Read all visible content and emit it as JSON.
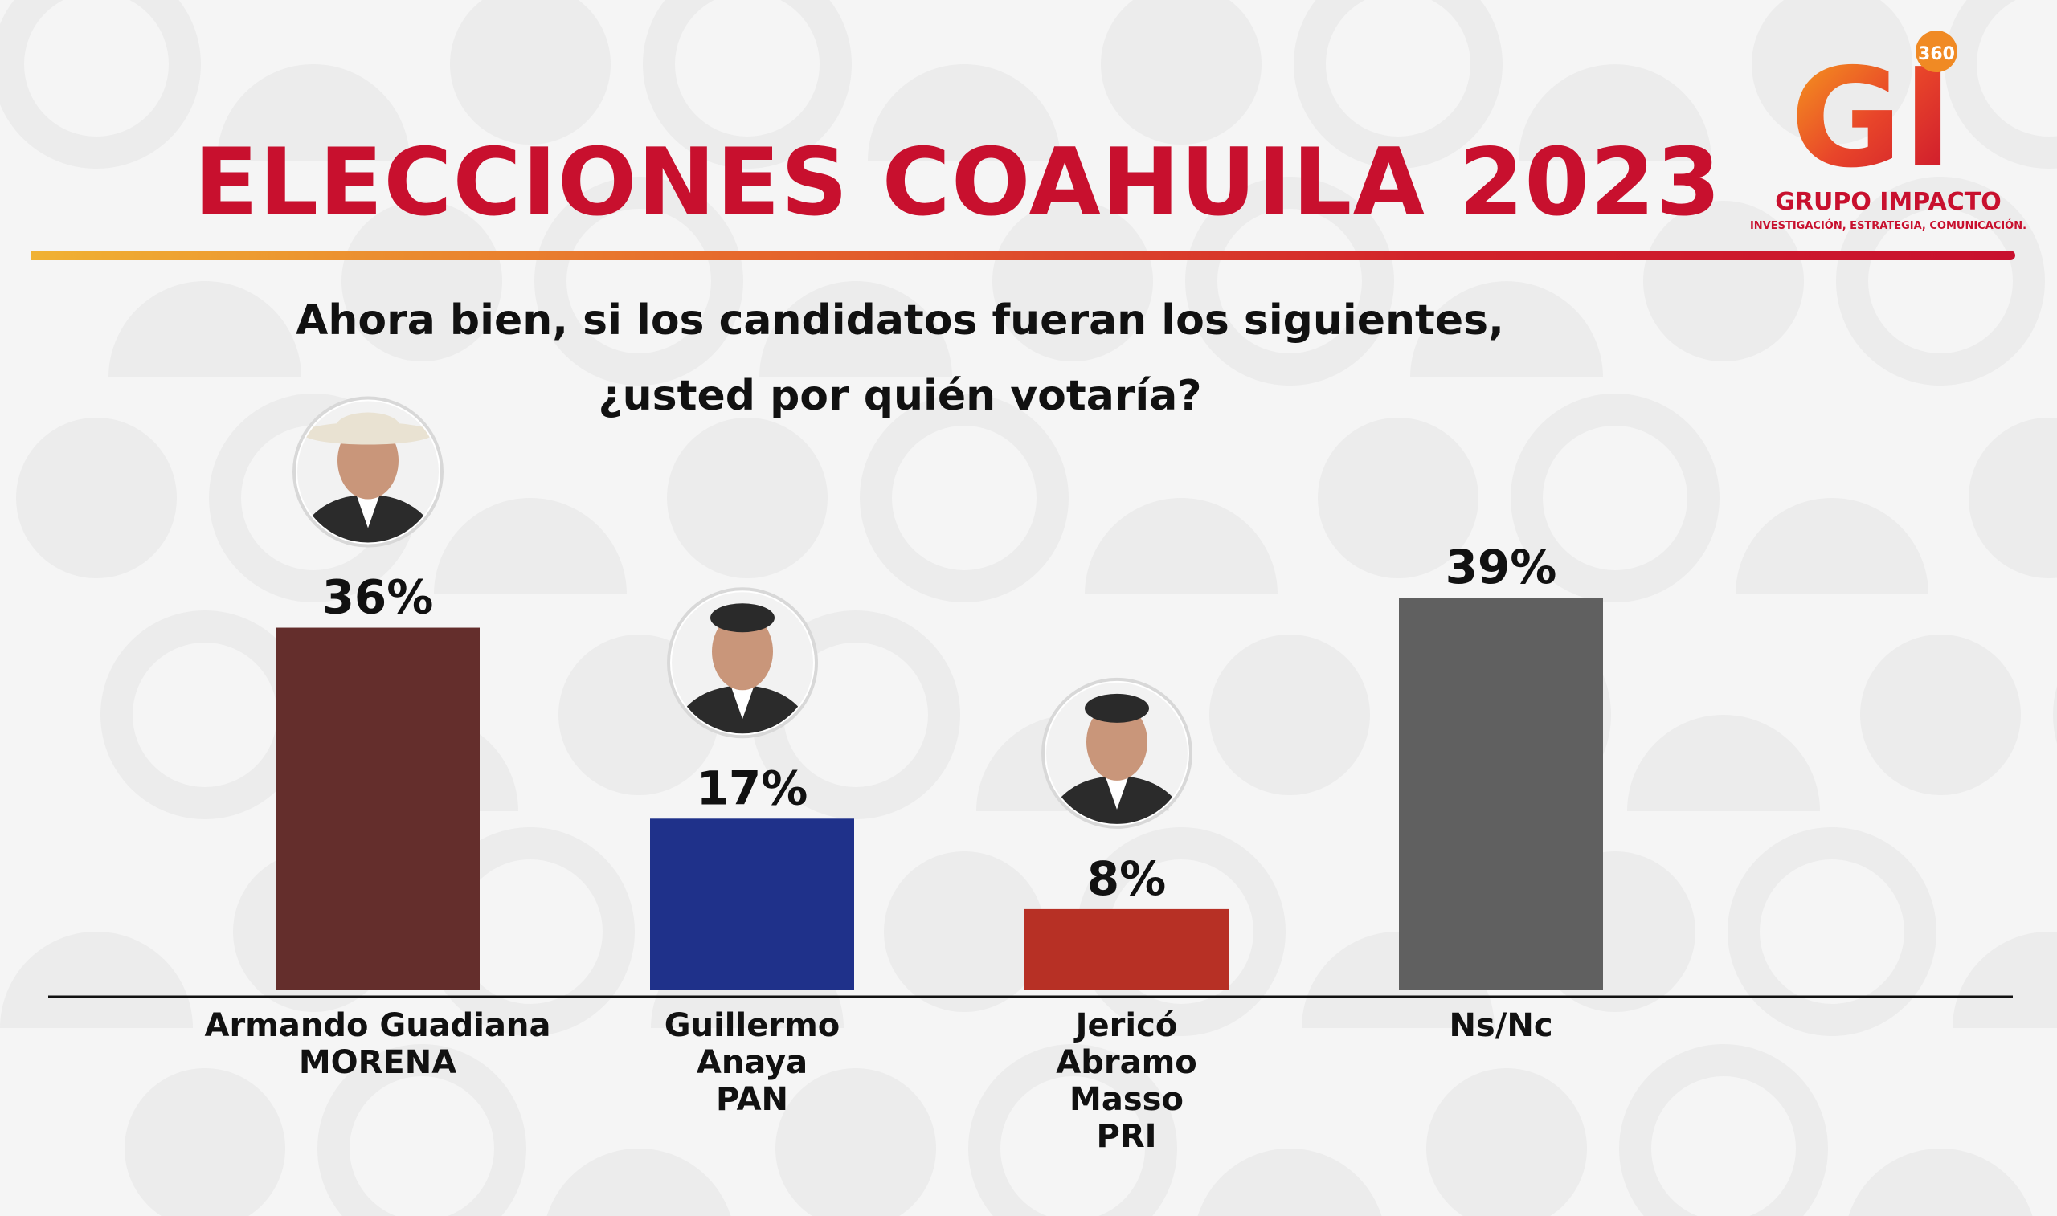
{
  "header": {
    "title": "ELECCIONES COAHUILA 2023",
    "question_line1": "Ahora bien, si los candidatos fueran los siguientes,",
    "question_line2": "¿usted por quién votaría?"
  },
  "logo": {
    "mark": "GI",
    "badge": "360",
    "name": "GRUPO IMPACTO",
    "tagline": "INVESTIGACIÓN, ESTRATEGIA, COMUNICACIÓN."
  },
  "colors": {
    "title": "#c8102e",
    "morena": "#642e2c",
    "pan": "#1f318a",
    "pri": "#b73025",
    "nsnc": "#606060"
  },
  "chart_data": {
    "type": "bar",
    "categories": [
      [
        "Armando Guadiana",
        "MORENA"
      ],
      [
        "Guillermo",
        "Anaya",
        "PAN"
      ],
      [
        "Jericó",
        "Abramo",
        "Masso",
        "PRI"
      ],
      [
        "Ns/Nc"
      ]
    ],
    "values": [
      36,
      17,
      8,
      39
    ],
    "value_labels": [
      "36%",
      "17%",
      "8%",
      "39%"
    ],
    "bar_colors": [
      "#642e2c",
      "#1f318a",
      "#b73025",
      "#606060"
    ],
    "candidate_photo": [
      true,
      true,
      true,
      false
    ],
    "ylim": [
      0,
      100
    ],
    "grid": false,
    "legend": "none"
  }
}
